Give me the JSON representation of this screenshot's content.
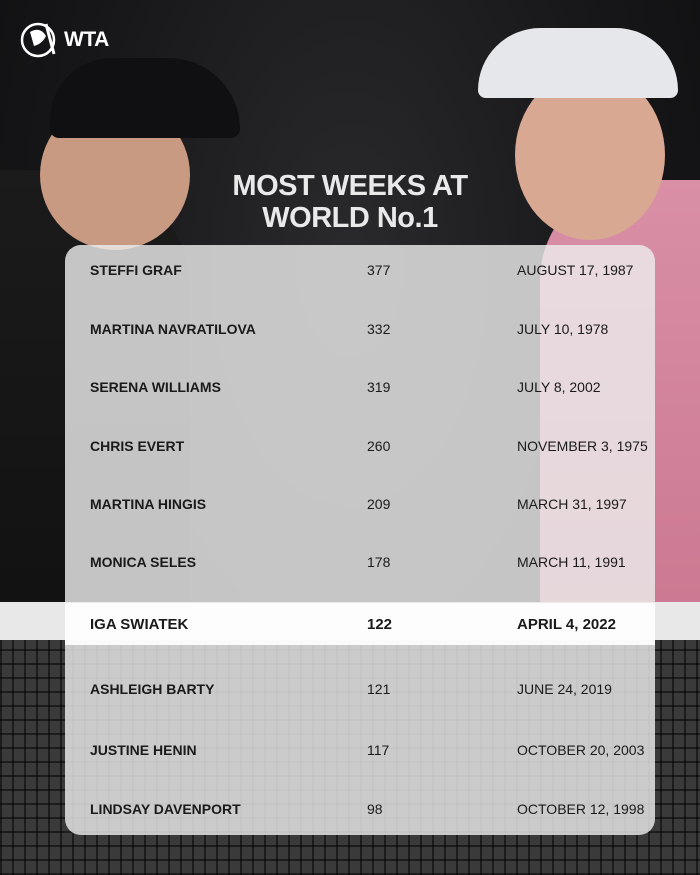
{
  "brand": {
    "logo_text": "WTA"
  },
  "title_lines": [
    "MOST WEEKS AT",
    "WORLD No.1"
  ],
  "colors": {
    "panel": "#ececec",
    "text": "#1a1a1a",
    "title": "#e9e9e9"
  },
  "highlight_row": 6,
  "rows": [
    {
      "name": "STEFFI GRAF",
      "weeks": "377",
      "date": "AUGUST 17, 1987"
    },
    {
      "name": "MARTINA NAVRATILOVA",
      "weeks": "332",
      "date": "JULY 10, 1978"
    },
    {
      "name": "SERENA WILLIAMS",
      "weeks": "319",
      "date": "JULY 8, 2002"
    },
    {
      "name": "CHRIS EVERT",
      "weeks": "260",
      "date": "NOVEMBER 3, 1975"
    },
    {
      "name": "MARTINA HINGIS",
      "weeks": "209",
      "date": "MARCH 31, 1997"
    },
    {
      "name": "MONICA SELES",
      "weeks": "178",
      "date": "MARCH 11, 1991"
    },
    {
      "name": "IGA SWIATEK",
      "weeks": "122",
      "date": "APRIL 4, 2022"
    },
    {
      "name": "ASHLEIGH BARTY",
      "weeks": "121",
      "date": "JUNE 24, 2019"
    },
    {
      "name": "JUSTINE HENIN",
      "weeks": "117",
      "date": "OCTOBER 20, 2003"
    },
    {
      "name": "LINDSAY DAVENPORT",
      "weeks": "98",
      "date": "OCTOBER 12, 1998"
    }
  ]
}
